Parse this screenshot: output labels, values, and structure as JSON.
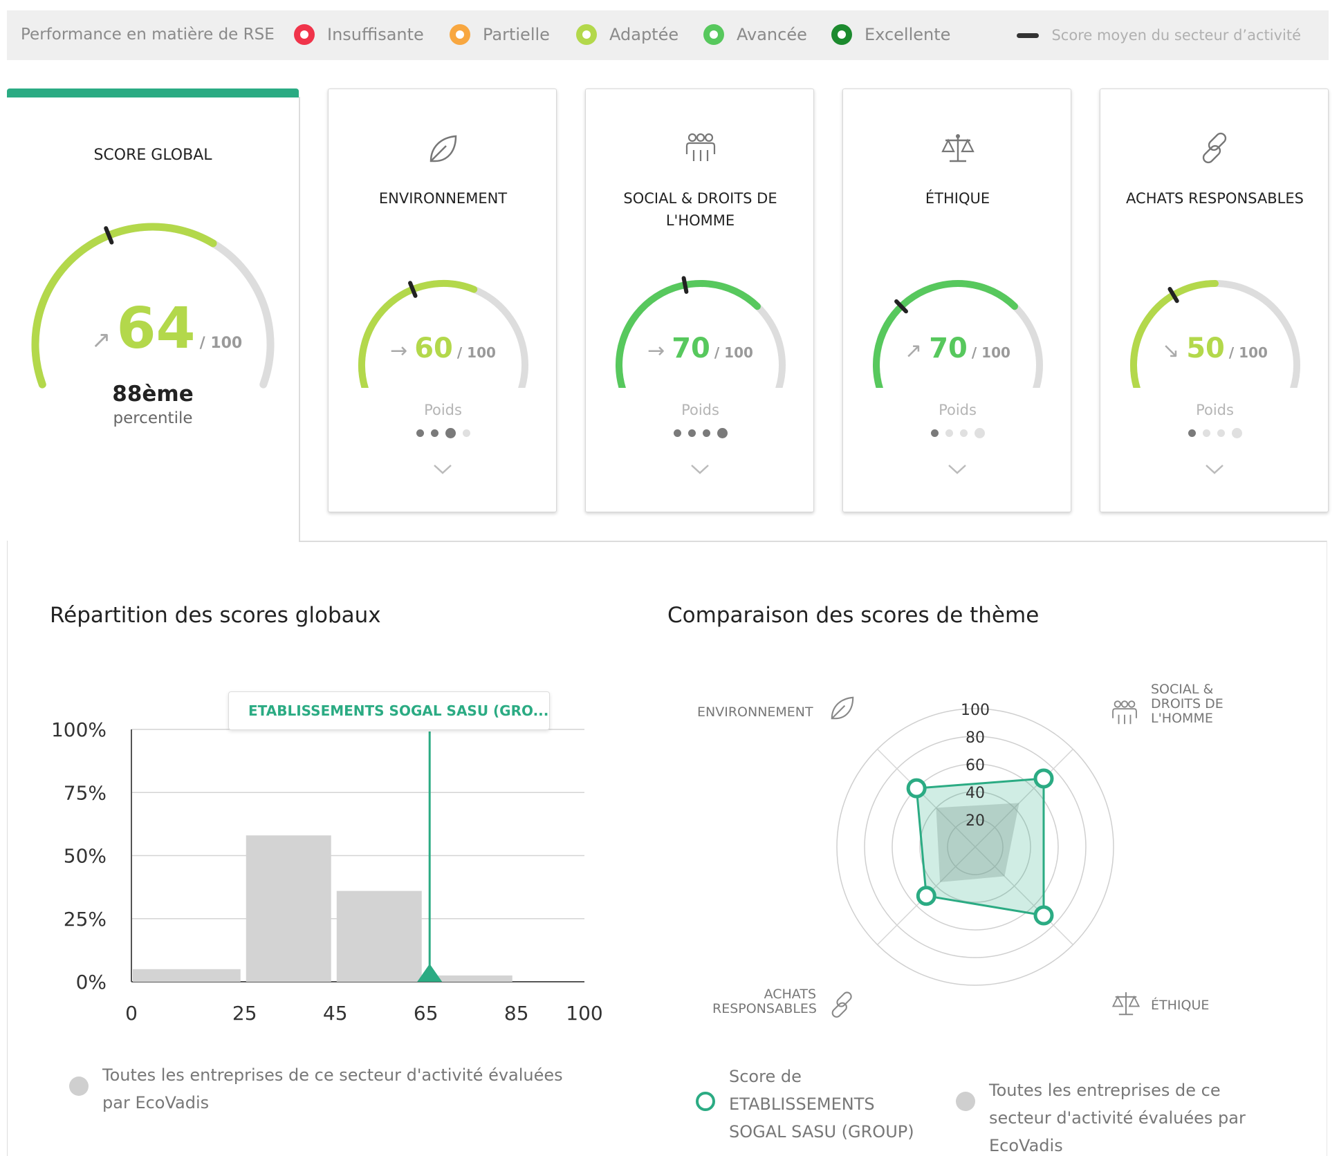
{
  "legend": {
    "title": "Performance en matière de RSE",
    "levels": [
      {
        "label": "Insuffisante",
        "color": "#f0344a"
      },
      {
        "label": "Partielle",
        "color": "#f8a740"
      },
      {
        "label": "Adaptée",
        "color": "#b3d84b"
      },
      {
        "label": "Avancée",
        "color": "#57c85d"
      },
      {
        "label": "Excellente",
        "color": "#1c8a2e"
      }
    ],
    "sector_avg": "Score moyen du secteur d’activité"
  },
  "global": {
    "label": "SCORE GLOBAL",
    "trend_icon": "arrow-up-right-icon",
    "score": "64",
    "score_value": 64,
    "sector_avg_value": 40,
    "max": "/ 100",
    "rank": "88ème",
    "rank_suffix": "percentile",
    "color": "#b3d84b"
  },
  "themes": [
    {
      "title": "ENVIRONNEMENT",
      "icon": "leaf-icon",
      "trend_icon": "arrow-right-icon",
      "trend": "→",
      "score": "60",
      "score_value": 60,
      "sector_avg_value": 40,
      "max": "/ 100",
      "poids": "Poids",
      "weight": 3,
      "color": "#b3d84b"
    },
    {
      "title": "SOCIAL & DROITS DE L'HOMME",
      "icon": "people-icon",
      "trend_icon": "arrow-right-icon",
      "trend": "→",
      "score": "70",
      "score_value": 70,
      "sector_avg_value": 45,
      "max": "/ 100",
      "poids": "Poids",
      "weight": 4,
      "color": "#57c85d"
    },
    {
      "title": "ÉTHIQUE",
      "icon": "scales-icon",
      "trend_icon": "arrow-up-right-icon",
      "trend": "↗",
      "score": "70",
      "score_value": 70,
      "sector_avg_value": 30,
      "max": "/ 100",
      "poids": "Poids",
      "weight": 1,
      "color": "#57c85d"
    },
    {
      "title": "ACHATS RESPONSABLES",
      "icon": "link-icon",
      "trend_icon": "arrow-down-right-icon",
      "trend": "↘",
      "score": "50",
      "score_value": 50,
      "sector_avg_value": 36,
      "max": "/ 100",
      "poids": "Poids",
      "weight": 1,
      "color": "#b3d84b"
    }
  ],
  "distribution": {
    "title": "Répartition des scores globaux",
    "tooltip": "ETABLISSEMENTS SOGAL SASU (GRO...",
    "legend": "Toutes les entreprises de ce secteur d'activité évaluées par EcoVadis"
  },
  "comparison": {
    "title": "Comparaison des scores de thème",
    "axes": {
      "env": "ENVIRONNEMENT",
      "social": [
        "SOCIAL &",
        "DROITS DE",
        "L'HOMME"
      ],
      "ethique": "ÉTHIQUE",
      "achats": [
        "ACHATS",
        "RESPONSABLES"
      ]
    },
    "ticks": [
      "100",
      "80",
      "60",
      "40",
      "20"
    ],
    "legend_company": "Score de ETABLISSEMENTS SOGAL SASU (GROUP)",
    "legend_sector": "Toutes les entreprises de ce secteur d'activité évaluées par EcoVadis"
  },
  "chart_data": [
    {
      "type": "bar",
      "title": "Répartition des scores globaux",
      "x_ticks": [
        "0",
        "25",
        "45",
        "65",
        "85",
        "100"
      ],
      "y_ticks": [
        "100%",
        "75%",
        "50%",
        "25%",
        "0%"
      ],
      "bins": [
        [
          0,
          25
        ],
        [
          25,
          45
        ],
        [
          45,
          65
        ],
        [
          65,
          85
        ],
        [
          85,
          100
        ]
      ],
      "values": [
        5,
        58,
        36,
        2.5,
        0
      ],
      "marker_x": 64,
      "ylim": [
        0,
        100
      ],
      "grid": true
    },
    {
      "type": "radar",
      "title": "Comparaison des scores de thème",
      "axes": [
        "ENVIRONNEMENT",
        "SOCIAL & DROITS DE L'HOMME",
        "ÉTHIQUE",
        "ACHATS RESPONSABLES"
      ],
      "series": [
        {
          "name": "ETABLISSEMENTS SOGAL SASU (GROUP)",
          "values": [
            60,
            70,
            70,
            50
          ]
        },
        {
          "name": "Toutes les entreprises de ce secteur d'activité évaluées par EcoVadis",
          "values": [
            40,
            45,
            30,
            36
          ]
        }
      ],
      "range": [
        0,
        100
      ]
    }
  ]
}
